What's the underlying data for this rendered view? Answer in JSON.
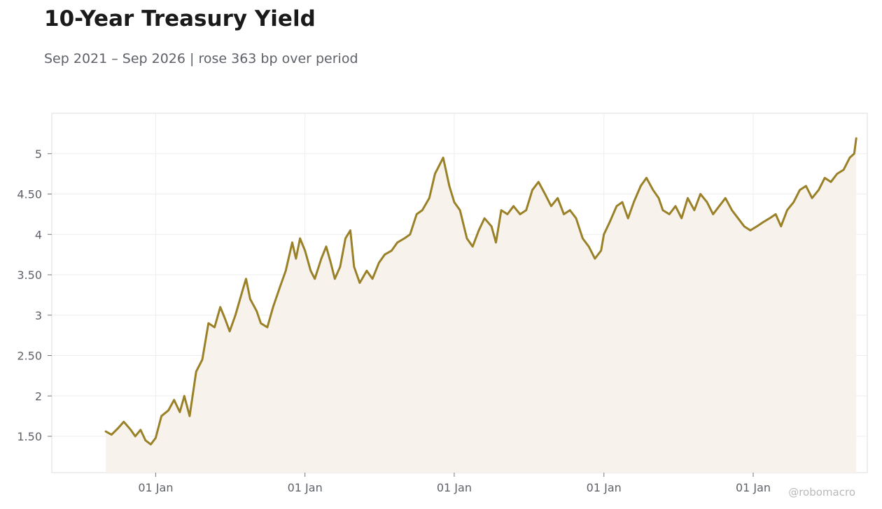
{
  "header": {
    "title": "10-Year Treasury Yield",
    "subtitle": "Sep 2021 – Sep 2026 | rose 363 bp over period",
    "watermark": "@robomacro"
  },
  "colors": {
    "line": "#9a8128",
    "fill": "#f7f3ec",
    "grid": "#ededed",
    "frame": "#dddddd",
    "tick_text": "#5f6169"
  },
  "chart_data": {
    "type": "area",
    "title": "10-Year Treasury Yield",
    "subtitle": "Sep 2021 – Sep 2026 | rose 363 bp over period",
    "xlabel": "",
    "ylabel": "",
    "x_range": [
      "2021-04-22",
      "2026-10-07"
    ],
    "ylim": [
      1.05,
      5.5
    ],
    "grid": true,
    "legend": "none",
    "x_ticks": [
      {
        "date": "2022-01-01",
        "label": "01 Jan"
      },
      {
        "date": "2023-01-01",
        "label": "01 Jan"
      },
      {
        "date": "2024-01-01",
        "label": "01 Jan"
      },
      {
        "date": "2025-01-01",
        "label": "01 Jan"
      },
      {
        "date": "2026-01-01",
        "label": "01 Jan"
      }
    ],
    "y_ticks": [
      {
        "value": 1.5,
        "label": "1.50"
      },
      {
        "value": 2,
        "label": "2"
      },
      {
        "value": 2.5,
        "label": "2.50"
      },
      {
        "value": 3,
        "label": "3"
      },
      {
        "value": 3.5,
        "label": "3.50"
      },
      {
        "value": 4,
        "label": "4"
      },
      {
        "value": 4.5,
        "label": "4.50"
      },
      {
        "value": 5,
        "label": "5"
      }
    ],
    "series": [
      {
        "points": [
          [
            "2021-09-01",
            1.56
          ],
          [
            "2021-09-15",
            1.52
          ],
          [
            "2021-10-01",
            1.6
          ],
          [
            "2021-10-15",
            1.68
          ],
          [
            "2021-11-01",
            1.58
          ],
          [
            "2021-11-12",
            1.5
          ],
          [
            "2021-11-25",
            1.58
          ],
          [
            "2021-12-07",
            1.45
          ],
          [
            "2021-12-20",
            1.4
          ],
          [
            "2022-01-01",
            1.48
          ],
          [
            "2022-01-15",
            1.75
          ],
          [
            "2022-02-01",
            1.82
          ],
          [
            "2022-02-15",
            1.95
          ],
          [
            "2022-03-01",
            1.8
          ],
          [
            "2022-03-12",
            2.0
          ],
          [
            "2022-03-25",
            1.75
          ],
          [
            "2022-04-10",
            2.3
          ],
          [
            "2022-04-25",
            2.45
          ],
          [
            "2022-05-10",
            2.9
          ],
          [
            "2022-05-25",
            2.85
          ],
          [
            "2022-06-08",
            3.1
          ],
          [
            "2022-06-20",
            2.95
          ],
          [
            "2022-07-01",
            2.8
          ],
          [
            "2022-07-15",
            3.0
          ],
          [
            "2022-08-01",
            3.3
          ],
          [
            "2022-08-10",
            3.45
          ],
          [
            "2022-08-20",
            3.2
          ],
          [
            "2022-09-05",
            3.05
          ],
          [
            "2022-09-15",
            2.9
          ],
          [
            "2022-10-01",
            2.85
          ],
          [
            "2022-10-15",
            3.1
          ],
          [
            "2022-11-01",
            3.35
          ],
          [
            "2022-11-15",
            3.55
          ],
          [
            "2022-12-01",
            3.9
          ],
          [
            "2022-12-10",
            3.7
          ],
          [
            "2022-12-20",
            3.95
          ],
          [
            "2023-01-01",
            3.8
          ],
          [
            "2023-01-15",
            3.55
          ],
          [
            "2023-01-25",
            3.45
          ],
          [
            "2023-02-10",
            3.7
          ],
          [
            "2023-02-22",
            3.85
          ],
          [
            "2023-03-05",
            3.65
          ],
          [
            "2023-03-15",
            3.45
          ],
          [
            "2023-03-28",
            3.6
          ],
          [
            "2023-04-10",
            3.95
          ],
          [
            "2023-04-22",
            4.05
          ],
          [
            "2023-05-01",
            3.6
          ],
          [
            "2023-05-15",
            3.4
          ],
          [
            "2023-06-01",
            3.55
          ],
          [
            "2023-06-15",
            3.45
          ],
          [
            "2023-07-01",
            3.65
          ],
          [
            "2023-07-15",
            3.75
          ],
          [
            "2023-08-01",
            3.8
          ],
          [
            "2023-08-15",
            3.9
          ],
          [
            "2023-09-01",
            3.95
          ],
          [
            "2023-09-15",
            4.0
          ],
          [
            "2023-10-01",
            4.25
          ],
          [
            "2023-10-15",
            4.3
          ],
          [
            "2023-11-01",
            4.45
          ],
          [
            "2023-11-15",
            4.75
          ],
          [
            "2023-11-25",
            4.85
          ],
          [
            "2023-12-05",
            4.95
          ],
          [
            "2023-12-20",
            4.6
          ],
          [
            "2024-01-01",
            4.4
          ],
          [
            "2024-01-15",
            4.3
          ],
          [
            "2024-02-01",
            3.95
          ],
          [
            "2024-02-15",
            3.85
          ],
          [
            "2024-03-01",
            4.05
          ],
          [
            "2024-03-15",
            4.2
          ],
          [
            "2024-04-01",
            4.1
          ],
          [
            "2024-04-12",
            3.9
          ],
          [
            "2024-04-25",
            4.3
          ],
          [
            "2024-05-10",
            4.25
          ],
          [
            "2024-05-25",
            4.35
          ],
          [
            "2024-06-10",
            4.25
          ],
          [
            "2024-06-25",
            4.3
          ],
          [
            "2024-07-10",
            4.55
          ],
          [
            "2024-07-25",
            4.65
          ],
          [
            "2024-08-10",
            4.5
          ],
          [
            "2024-08-25",
            4.35
          ],
          [
            "2024-09-10",
            4.45
          ],
          [
            "2024-09-25",
            4.25
          ],
          [
            "2024-10-10",
            4.3
          ],
          [
            "2024-10-25",
            4.2
          ],
          [
            "2024-11-10",
            3.95
          ],
          [
            "2024-11-25",
            3.85
          ],
          [
            "2024-12-10",
            3.7
          ],
          [
            "2024-12-25",
            3.8
          ],
          [
            "2025-01-01",
            4.0
          ],
          [
            "2025-01-15",
            4.15
          ],
          [
            "2025-02-01",
            4.35
          ],
          [
            "2025-02-15",
            4.4
          ],
          [
            "2025-03-01",
            4.2
          ],
          [
            "2025-03-15",
            4.4
          ],
          [
            "2025-04-01",
            4.6
          ],
          [
            "2025-04-15",
            4.7
          ],
          [
            "2025-05-01",
            4.55
          ],
          [
            "2025-05-15",
            4.45
          ],
          [
            "2025-05-25",
            4.3
          ],
          [
            "2025-06-10",
            4.25
          ],
          [
            "2025-06-25",
            4.35
          ],
          [
            "2025-07-10",
            4.2
          ],
          [
            "2025-07-25",
            4.45
          ],
          [
            "2025-08-10",
            4.3
          ],
          [
            "2025-08-25",
            4.5
          ],
          [
            "2025-09-10",
            4.4
          ],
          [
            "2025-09-25",
            4.25
          ],
          [
            "2025-10-10",
            4.35
          ],
          [
            "2025-10-25",
            4.45
          ],
          [
            "2025-11-10",
            4.3
          ],
          [
            "2025-11-25",
            4.2
          ],
          [
            "2025-12-10",
            4.1
          ],
          [
            "2025-12-25",
            4.05
          ],
          [
            "2026-01-10",
            4.1
          ],
          [
            "2026-01-25",
            4.15
          ],
          [
            "2026-02-10",
            4.2
          ],
          [
            "2026-02-25",
            4.25
          ],
          [
            "2026-03-10",
            4.1
          ],
          [
            "2026-03-25",
            4.3
          ],
          [
            "2026-04-10",
            4.4
          ],
          [
            "2026-04-25",
            4.55
          ],
          [
            "2026-05-10",
            4.6
          ],
          [
            "2026-05-25",
            4.45
          ],
          [
            "2026-06-10",
            4.55
          ],
          [
            "2026-06-25",
            4.7
          ],
          [
            "2026-07-10",
            4.65
          ],
          [
            "2026-07-25",
            4.75
          ],
          [
            "2026-08-10",
            4.8
          ],
          [
            "2026-08-25",
            4.95
          ],
          [
            "2026-09-05",
            5.0
          ],
          [
            "2026-09-10",
            5.19
          ]
        ]
      }
    ]
  }
}
